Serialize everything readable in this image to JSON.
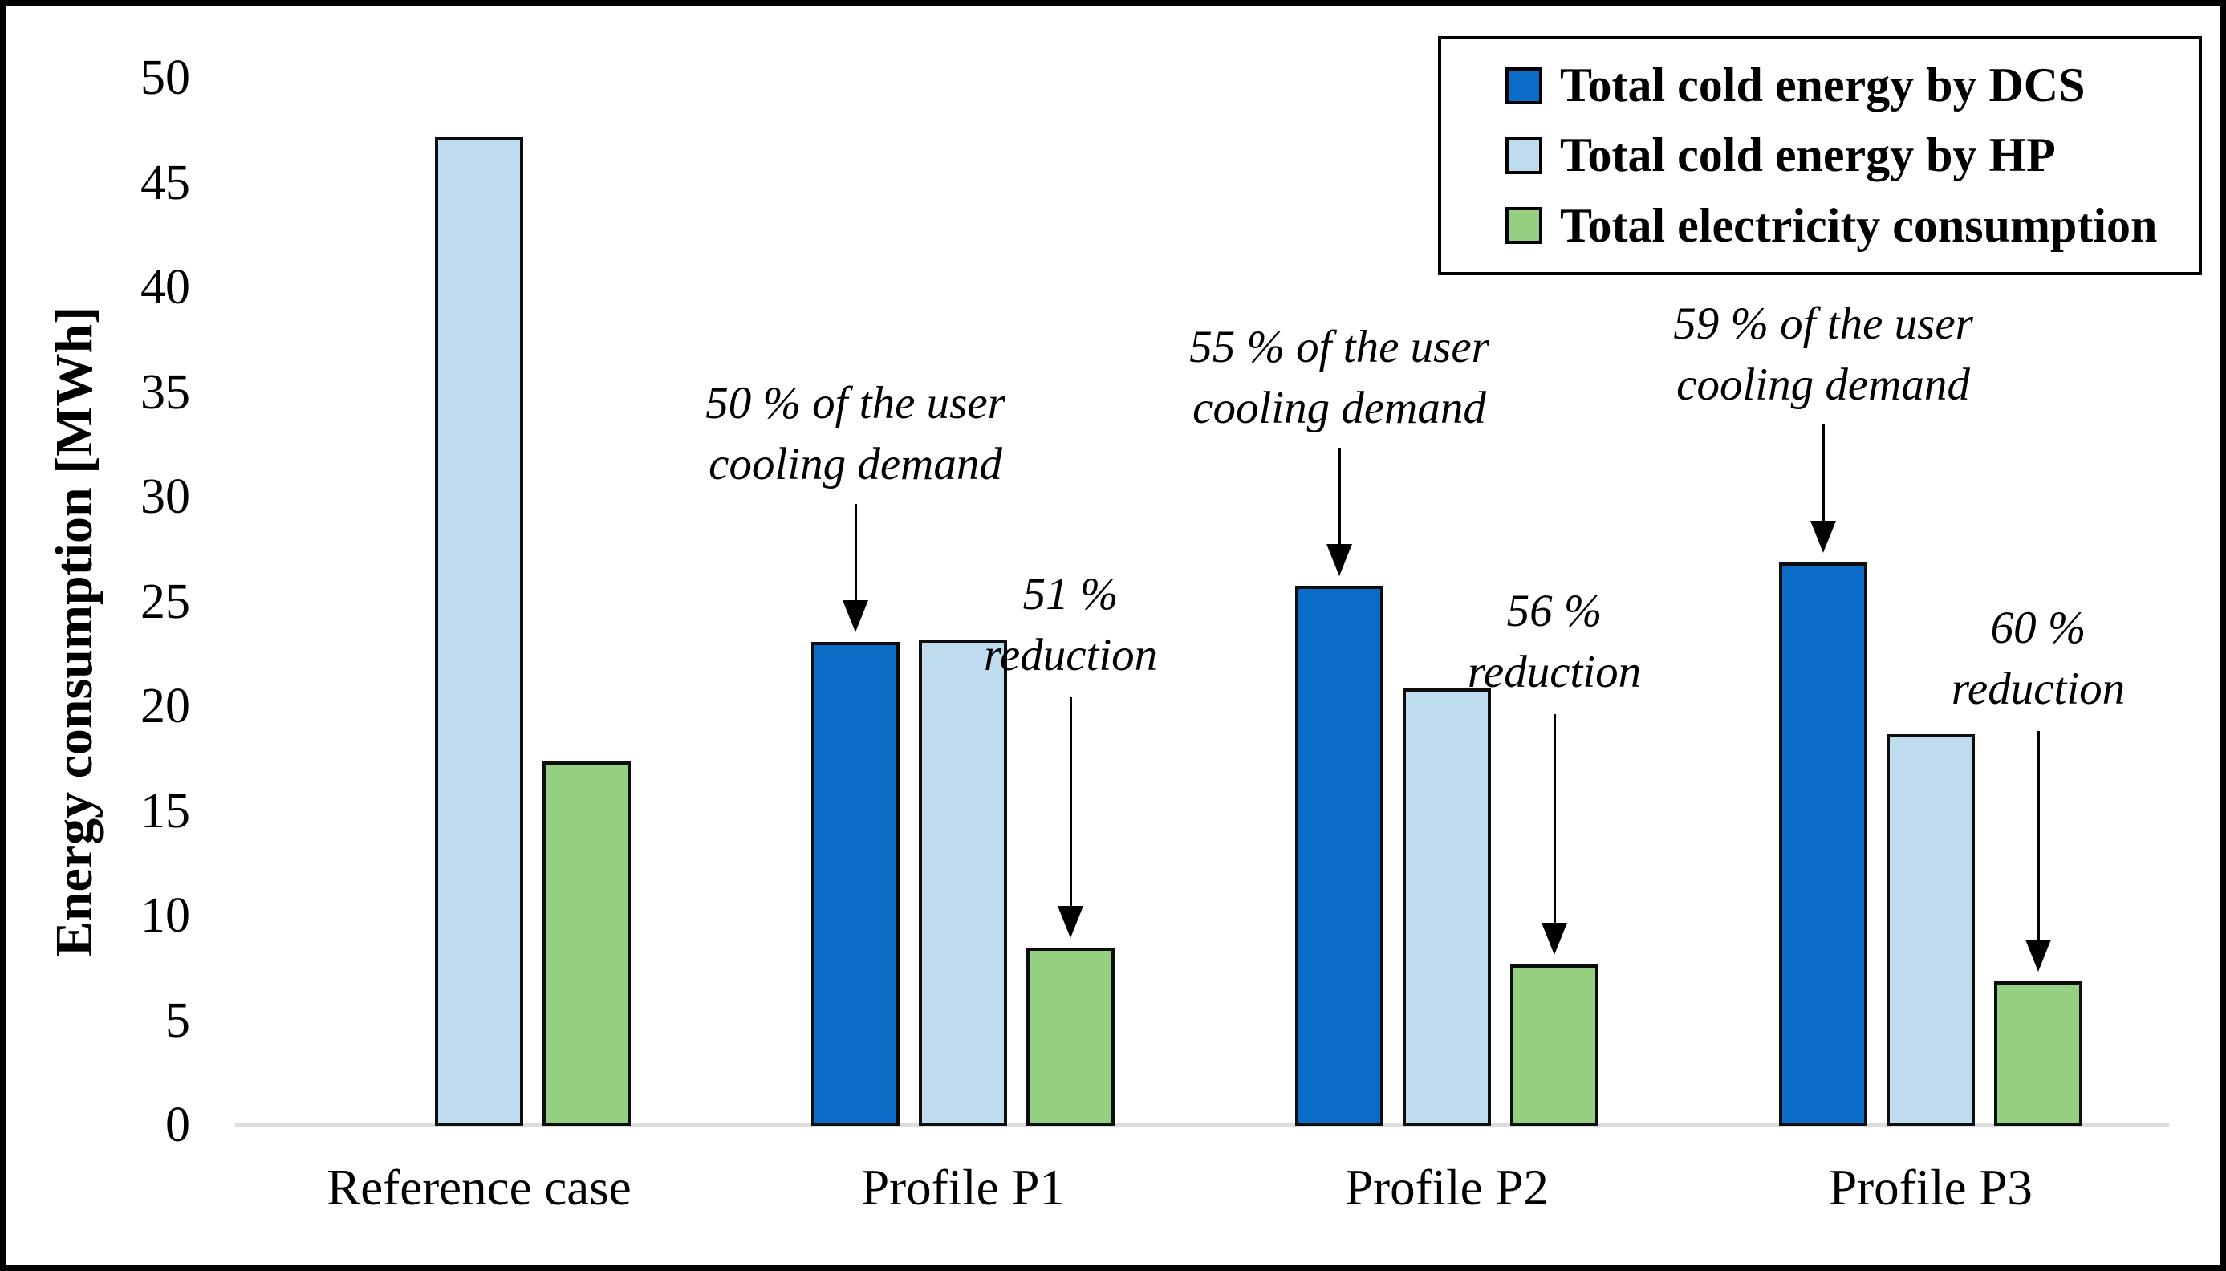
{
  "chart_data": {
    "type": "bar",
    "title": "",
    "xlabel": "",
    "ylabel": "Energy consumption [MWh]",
    "ylim": [
      0,
      50
    ],
    "ytick_step": 5,
    "grid": false,
    "legend_position": "top-right",
    "categories": [
      "Reference case",
      "Profile P1",
      "Profile P2",
      "Profile P3"
    ],
    "series": [
      {
        "name": "Total cold energy by DCS",
        "color": "#0B6CC7",
        "values": [
          0,
          23.1,
          25.8,
          26.9
        ]
      },
      {
        "name": "Total cold energy by HP",
        "color": "#BFDCEF",
        "values": [
          47.2,
          23.2,
          20.9,
          18.7
        ]
      },
      {
        "name": "Total electricity consumption",
        "color": "#94CF82",
        "values": [
          17.4,
          8.5,
          7.7,
          6.9
        ]
      }
    ],
    "annotations": [
      {
        "lines": [
          "50 % of the user",
          "cooling demand"
        ],
        "kind": "demand",
        "category_index": 1,
        "series_index": 0
      },
      {
        "lines": [
          "51 %",
          "reduction"
        ],
        "kind": "reduction",
        "category_index": 1,
        "series_index": 2
      },
      {
        "lines": [
          "55 % of the user",
          "cooling demand"
        ],
        "kind": "demand",
        "category_index": 2,
        "series_index": 0
      },
      {
        "lines": [
          "56 %",
          "reduction"
        ],
        "kind": "reduction",
        "category_index": 2,
        "series_index": 2
      },
      {
        "lines": [
          "59 % of the user",
          "cooling demand"
        ],
        "kind": "demand",
        "category_index": 3,
        "series_index": 0
      },
      {
        "lines": [
          "60 %",
          "reduction"
        ],
        "kind": "reduction",
        "category_index": 3,
        "series_index": 2
      }
    ],
    "colors": {
      "axis_line": "#DCDCDC",
      "bar_border": "#0D0D0D",
      "text": "#000000"
    }
  }
}
